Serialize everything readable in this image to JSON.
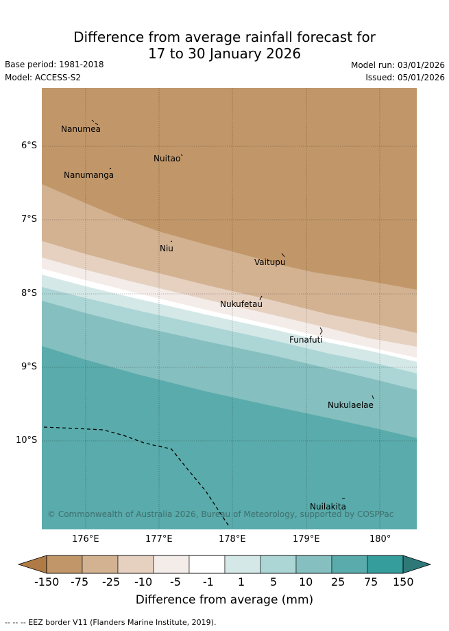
{
  "title_line1": "Difference from average rainfall forecast for",
  "title_line2": "17 to 30 January 2026",
  "base_period": "Base period: 1981-2018",
  "model": "Model: ACCESS-S2",
  "model_run": "Model run: 03/01/2026",
  "issued": "Issued: 05/01/2026",
  "copyright": "© Commonwealth of Australia 2026, Bureau of Meteorology, supported by COSPPac",
  "map": {
    "lat_labels": [
      "6°S",
      "7°S",
      "8°S",
      "9°S",
      "10°S"
    ],
    "lon_labels": [
      "176°E",
      "177°E",
      "178°E",
      "179°E",
      "180°"
    ],
    "places": [
      "Nanumea",
      "Nuitao",
      "Nanumanga",
      "Niu",
      "Vaitupu",
      "Nukufetau",
      "Funafuti",
      "Nukulaelae",
      "Nuilakita"
    ]
  },
  "colorbar": {
    "ticks": [
      "-150",
      "-75",
      "-25",
      "-10",
      "-5",
      "-1",
      "1",
      "5",
      "10",
      "25",
      "75",
      "150"
    ],
    "colors": [
      "#b07a44",
      "#c19769",
      "#d3b292",
      "#e6d1c1",
      "#f4ece8",
      "#ffffff",
      "#d4e8e8",
      "#acd5d5",
      "#85bfbf",
      "#5aabab",
      "#369d9d",
      "#2f7878"
    ],
    "label": "Difference from average (mm)"
  },
  "legend_note": "-- -- -- EEZ border V11 (Flanders Marine Institute, 2019)."
}
